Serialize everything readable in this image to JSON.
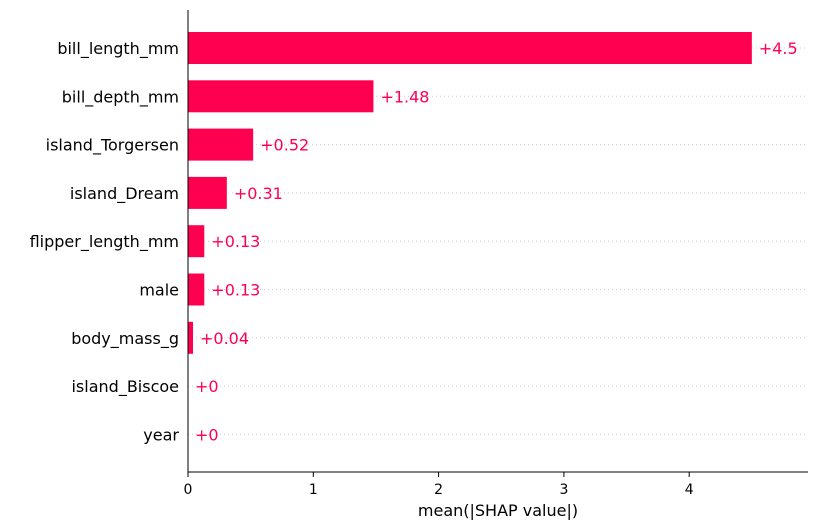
{
  "chart_data": {
    "type": "bar",
    "orientation": "horizontal",
    "title": "",
    "xlabel": "mean(|SHAP value|)",
    "ylabel": "",
    "categories": [
      "bill_length_mm",
      "bill_depth_mm",
      "island_Torgersen",
      "island_Dream",
      "flipper_length_mm",
      "male",
      "body_mass_g",
      "island_Biscoe",
      "year"
    ],
    "values": [
      4.5,
      1.48,
      0.52,
      0.31,
      0.13,
      0.13,
      0.04,
      0.0,
      0.0
    ],
    "value_labels": [
      "+4.5",
      "+1.48",
      "+0.52",
      "+0.31",
      "+0.13",
      "+0.13",
      "+0.04",
      "+0",
      "+0"
    ],
    "xlim": [
      0,
      4.95
    ],
    "xticks": [
      0,
      1,
      2,
      3,
      4
    ],
    "xtick_labels": [
      "0",
      "1",
      "2",
      "3",
      "4"
    ],
    "grid": "dotted horizontal guide lines per feature",
    "legend": "none",
    "bar_color": "#ff0051",
    "label_color": "#ff0051",
    "grid_color": "#cccccc"
  }
}
